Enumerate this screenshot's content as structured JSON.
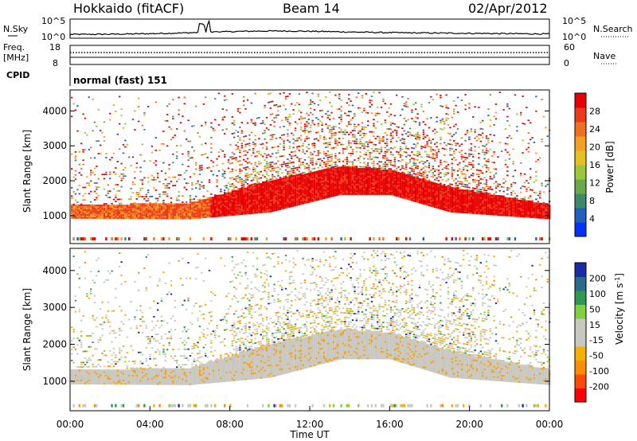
{
  "header": {
    "station": "Hokkaido (fitACF)",
    "beam": "Beam 14",
    "date": "02/Apr/2012"
  },
  "noise_panel": {
    "left_label": "N.Sky",
    "right_label": "N.Search",
    "left_ticks": [
      "10^5",
      "10^0"
    ],
    "right_ticks": [
      "10^5",
      "10^0"
    ]
  },
  "freq_panel": {
    "left_label_1": "Freq.",
    "left_label_2": "[MHz]",
    "right_label": "Nave",
    "left_ticks": [
      "18",
      "8"
    ],
    "right_ticks": [
      "60",
      "0"
    ]
  },
  "cpid_panel": {
    "label": "CPID",
    "text": "normal (fast) 151"
  },
  "x_axis": {
    "label": "Time UT",
    "ticks": [
      "00:00",
      "04:00",
      "08:00",
      "12:00",
      "16:00",
      "20:00",
      "00:00"
    ]
  },
  "chart_data": [
    {
      "type": "heatmap",
      "name": "Power",
      "ylabel": "Slant Range [km]",
      "xlabel": "Time UT",
      "yticks": [
        1000,
        2000,
        3000,
        4000
      ],
      "ylim": [
        200,
        4600
      ],
      "colorbar": {
        "label": "Power [dB]",
        "ticks": [
          "28",
          "24",
          "20",
          "16",
          "12",
          "8",
          "4"
        ],
        "colors": [
          "#0033ff",
          "#1f5fbf",
          "#3d8a6a",
          "#6aaa4a",
          "#9cc73a",
          "#e8c020",
          "#f5a020",
          "#f07020",
          "#ee3a18",
          "#e80000"
        ]
      },
      "bands": [
        {
          "t": 0,
          "start": 920,
          "end": 1280,
          "level": "orange-red"
        },
        {
          "t": 6,
          "start": 900,
          "end": 1350,
          "level": "orange"
        },
        {
          "t": 10,
          "start": 1100,
          "end": 2000,
          "level": "red"
        },
        {
          "t": 13.5,
          "start": 1600,
          "end": 2400,
          "level": "red"
        },
        {
          "t": 16,
          "start": 1600,
          "end": 2300,
          "level": "red"
        },
        {
          "t": 19,
          "start": 1100,
          "end": 1800,
          "level": "red"
        },
        {
          "t": 24,
          "start": 900,
          "end": 1300,
          "level": "red"
        }
      ]
    },
    {
      "type": "heatmap",
      "name": "Velocity",
      "ylabel": "Slant Range [km]",
      "xlabel": "Time UT",
      "yticks": [
        1000,
        2000,
        3000,
        4000
      ],
      "ylim": [
        200,
        4600
      ],
      "colorbar": {
        "label": "Velocity [m s^-1]",
        "ticks": [
          "200",
          "100",
          "50",
          "15",
          "-15",
          "-50",
          "-100",
          "-200"
        ],
        "colors": [
          "#ff0000",
          "#ff4a00",
          "#ff8c00",
          "#f5b000",
          "#c8c8c0",
          "#c8c8c0",
          "#7ed040",
          "#2c9a50",
          "#2a6a8a",
          "#1a2aa8"
        ]
      }
    }
  ]
}
